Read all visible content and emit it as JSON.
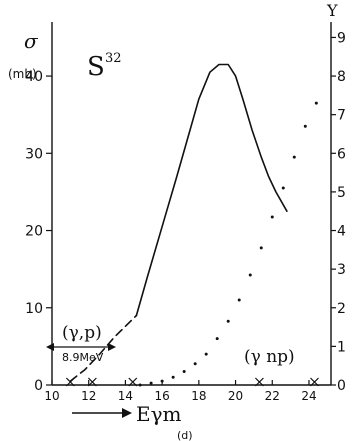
{
  "chart_data": {
    "type": "line",
    "title": "",
    "element_label": "S",
    "element_mass": "32",
    "ylabel_left": "σ",
    "ylabel_left_unit": "(mb)",
    "ylabel_right": "Y",
    "xlabel": "Eγm",
    "xlabel_sub": "(d)",
    "xlim": [
      10,
      25.2
    ],
    "ylim": [
      0,
      47
    ],
    "yright_lim": [
      0,
      9.4
    ],
    "x_ticks": [
      "10",
      "12",
      "14",
      "16",
      "18",
      "20",
      "22",
      "24"
    ],
    "y_ticks": [
      "0",
      "10",
      "20",
      "30",
      "40"
    ],
    "yright_ticks": [
      "0",
      "1",
      "2",
      "3",
      "4",
      "5",
      "6",
      "7",
      "8",
      "9"
    ],
    "annotations": [
      {
        "text": "(γ,p)"
      },
      {
        "text": "8.9MeV"
      },
      {
        "text": "(γ np)"
      }
    ],
    "series": [
      {
        "style": "solid",
        "color": "#111111",
        "x": [
          14.6,
          15.2,
          16.0,
          16.8,
          17.4,
          18.0,
          18.6,
          19.1,
          19.6,
          20.0,
          20.4,
          20.9,
          21.4,
          21.8,
          22.2,
          22.8
        ],
        "y": [
          9.0,
          14.0,
          20.5,
          27.0,
          32.0,
          37.0,
          40.5,
          41.5,
          41.5,
          40.0,
          37.0,
          33.0,
          29.5,
          27.0,
          25.0,
          22.5
        ]
      },
      {
        "style": "dashed",
        "color": "#111111",
        "x": [
          11.0,
          11.8,
          12.6,
          13.4,
          14.0,
          14.6
        ],
        "y": [
          0.5,
          2.0,
          4.0,
          6.2,
          7.6,
          9.0
        ]
      },
      {
        "style": "dotted",
        "axis": "right",
        "color": "#111111",
        "x": [
          14.8,
          15.4,
          16.0,
          16.6,
          17.2,
          17.8,
          18.4,
          19.0,
          19.6,
          20.2,
          20.8,
          21.4,
          22.0,
          22.6,
          23.2,
          23.8,
          24.4
        ],
        "y": [
          0.0,
          0.05,
          0.1,
          0.2,
          0.35,
          0.55,
          0.8,
          1.2,
          1.65,
          2.2,
          2.85,
          3.55,
          4.35,
          5.1,
          5.9,
          6.7,
          7.3
        ]
      }
    ],
    "crosses_x": [
      11.0,
      12.2,
      14.4,
      21.3,
      24.3
    ]
  }
}
